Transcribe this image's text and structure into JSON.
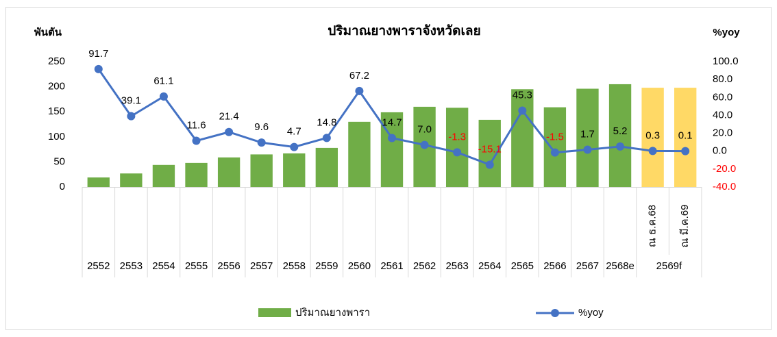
{
  "chart_data": {
    "type": "bar_line",
    "title": "ปริมาณยางพาราจังหวัดเลย",
    "y_label": "พันตัน",
    "y2_label": "%yoy",
    "categories": [
      "2552",
      "2553",
      "2554",
      "2555",
      "2556",
      "2557",
      "2558",
      "2559",
      "2560",
      "2561",
      "2562",
      "2563",
      "2564",
      "2565",
      "2566",
      "2567",
      "2568e",
      "ณ ธ.ค.68",
      "ณ มี.ค.69"
    ],
    "group_label": "2569f",
    "series": [
      {
        "name": "ปริมาณยางพารา",
        "type": "bar",
        "color": "#70ad47",
        "colors": [
          "#70ad47",
          "#70ad47",
          "#70ad47",
          "#70ad47",
          "#70ad47",
          "#70ad47",
          "#70ad47",
          "#70ad47",
          "#70ad47",
          "#70ad47",
          "#70ad47",
          "#70ad47",
          "#70ad47",
          "#70ad47",
          "#70ad47",
          "#70ad47",
          "#70ad47",
          "#ffd966",
          "#ffd966"
        ],
        "values": [
          19,
          27,
          44,
          48,
          59,
          65,
          67,
          78,
          130,
          149,
          160,
          158,
          134,
          195,
          159,
          196,
          205,
          198,
          198
        ]
      },
      {
        "name": "%yoy",
        "type": "line",
        "axis": "y2",
        "color": "#4472c4",
        "values": [
          91.7,
          39.1,
          61.1,
          11.6,
          21.4,
          9.6,
          4.7,
          14.8,
          67.2,
          14.7,
          7.0,
          -1.3,
          -15.1,
          45.3,
          -1.5,
          1.7,
          5.2,
          0.3,
          0.1
        ],
        "value_labels": [
          "91.7",
          "39.1",
          "61.1",
          "11.6",
          "21.4",
          "9.6",
          "4.7",
          "14.8",
          "67.2",
          "14.7",
          "7.0",
          "-1.3",
          "-15.1",
          "45.3",
          "-1.5",
          "1.7",
          "5.2",
          "0.3",
          "0.1"
        ]
      }
    ],
    "ylim": [
      0,
      250
    ],
    "yticks": [
      0,
      50,
      100,
      150,
      200,
      250
    ],
    "y2lim": [
      -40,
      100
    ],
    "y2ticks": [
      {
        "value": -40,
        "label": "-40.0"
      },
      {
        "value": -20,
        "label": "-20.0"
      },
      {
        "value": 0,
        "label": "0.0"
      },
      {
        "value": 20,
        "label": "20.0"
      },
      {
        "value": 40,
        "label": "40.0"
      },
      {
        "value": 60,
        "label": "60.0"
      },
      {
        "value": 80,
        "label": "80.0"
      },
      {
        "value": 100,
        "label": "100.0"
      }
    ],
    "negative_color": "#ff0000"
  }
}
